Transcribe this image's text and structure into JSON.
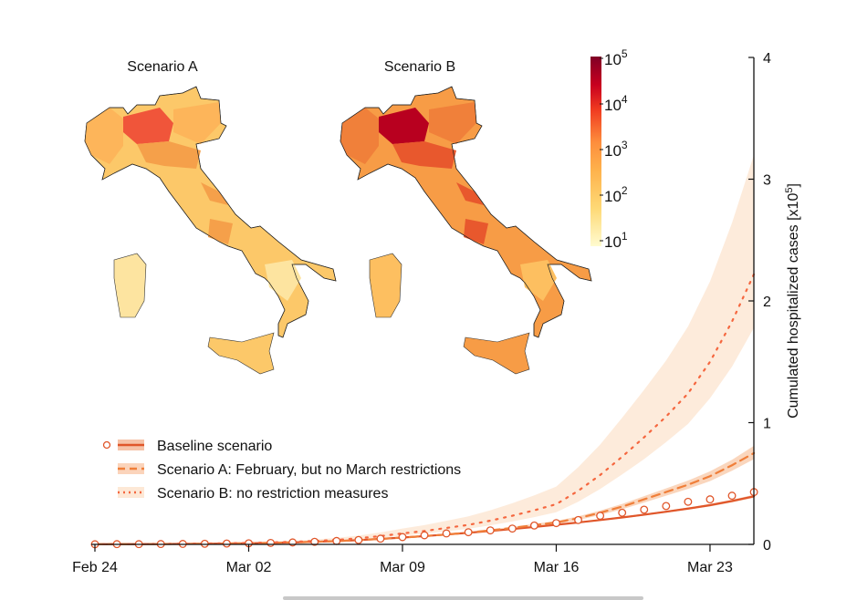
{
  "chart_data": {
    "type": "line",
    "title": "",
    "xlabel": "",
    "ylabel": "Cumulated hospitalized cases [x10^5]",
    "ylabel_main": "Cumulated hospitalized cases [x10",
    "ylabel_exp": "5",
    "ylabel_end": "]",
    "ylim": [
      0,
      4
    ],
    "yticks": [
      "0",
      "1",
      "2",
      "3",
      "4"
    ],
    "x_start": "Feb 24",
    "x_days": 31,
    "xticks": [
      {
        "day": 0,
        "label": "Feb 24"
      },
      {
        "day": 7,
        "label": "Mar 02"
      },
      {
        "day": 14,
        "label": "Mar 09"
      },
      {
        "day": 21,
        "label": "Mar 16"
      },
      {
        "day": 28,
        "label": "Mar 23"
      }
    ],
    "legend_position": "bottom-left",
    "series": [
      {
        "name": "Baseline scenario",
        "style": "solid",
        "color": "#e0562a",
        "values": [
          0.001,
          0.002,
          0.002,
          0.003,
          0.004,
          0.005,
          0.007,
          0.009,
          0.012,
          0.016,
          0.021,
          0.027,
          0.035,
          0.045,
          0.056,
          0.068,
          0.081,
          0.095,
          0.11,
          0.126,
          0.143,
          0.161,
          0.18,
          0.2,
          0.221,
          0.244,
          0.268,
          0.294,
          0.322,
          0.356,
          0.395
        ],
        "band_low": [
          0.001,
          0.002,
          0.002,
          0.003,
          0.004,
          0.005,
          0.007,
          0.009,
          0.012,
          0.015,
          0.02,
          0.026,
          0.034,
          0.043,
          0.054,
          0.066,
          0.078,
          0.092,
          0.106,
          0.122,
          0.138,
          0.156,
          0.174,
          0.194,
          0.214,
          0.236,
          0.26,
          0.285,
          0.312,
          0.345,
          0.383
        ],
        "band_high": [
          0.001,
          0.002,
          0.002,
          0.003,
          0.004,
          0.005,
          0.007,
          0.009,
          0.012,
          0.017,
          0.022,
          0.028,
          0.036,
          0.047,
          0.058,
          0.07,
          0.084,
          0.098,
          0.114,
          0.13,
          0.148,
          0.166,
          0.186,
          0.206,
          0.228,
          0.252,
          0.276,
          0.303,
          0.332,
          0.367,
          0.407
        ],
        "observed": [
          0.001,
          0.002,
          0.002,
          0.003,
          0.004,
          0.005,
          0.007,
          0.009,
          0.012,
          0.016,
          0.021,
          0.028,
          0.036,
          0.047,
          0.06,
          0.075,
          0.09,
          0.1,
          0.115,
          0.13,
          0.155,
          0.175,
          0.2,
          0.235,
          0.26,
          0.285,
          0.315,
          0.35,
          0.37,
          0.4,
          0.43
        ]
      },
      {
        "name": "Scenario A: February, but no March restrictions",
        "style": "dashed",
        "color": "#f07f3a",
        "values": [
          0.001,
          0.002,
          0.002,
          0.003,
          0.004,
          0.005,
          0.007,
          0.009,
          0.012,
          0.016,
          0.021,
          0.027,
          0.035,
          0.045,
          0.056,
          0.068,
          0.081,
          0.097,
          0.115,
          0.135,
          0.158,
          0.18,
          0.215,
          0.26,
          0.31,
          0.37,
          0.43,
          0.49,
          0.56,
          0.65,
          0.75
        ],
        "band_low": [
          0.001,
          0.002,
          0.002,
          0.003,
          0.004,
          0.005,
          0.007,
          0.009,
          0.012,
          0.015,
          0.02,
          0.026,
          0.033,
          0.042,
          0.052,
          0.063,
          0.075,
          0.09,
          0.107,
          0.126,
          0.147,
          0.167,
          0.2,
          0.242,
          0.288,
          0.344,
          0.4,
          0.456,
          0.52,
          0.605,
          0.7
        ],
        "band_high": [
          0.001,
          0.002,
          0.002,
          0.003,
          0.004,
          0.005,
          0.007,
          0.009,
          0.012,
          0.017,
          0.022,
          0.029,
          0.037,
          0.048,
          0.06,
          0.073,
          0.087,
          0.104,
          0.123,
          0.145,
          0.169,
          0.193,
          0.23,
          0.278,
          0.332,
          0.396,
          0.46,
          0.524,
          0.6,
          0.695,
          0.81
        ]
      },
      {
        "name": "Scenario B: no restriction measures",
        "style": "dotted",
        "color": "#f5673f",
        "values": [
          0.001,
          0.002,
          0.003,
          0.004,
          0.005,
          0.007,
          0.009,
          0.012,
          0.016,
          0.021,
          0.028,
          0.037,
          0.05,
          0.068,
          0.09,
          0.11,
          0.135,
          0.16,
          0.195,
          0.235,
          0.28,
          0.33,
          0.44,
          0.57,
          0.72,
          0.88,
          1.05,
          1.24,
          1.5,
          1.83,
          2.22
        ],
        "band_low": [
          0.001,
          0.002,
          0.002,
          0.003,
          0.004,
          0.006,
          0.007,
          0.01,
          0.013,
          0.017,
          0.022,
          0.03,
          0.04,
          0.054,
          0.072,
          0.088,
          0.108,
          0.128,
          0.156,
          0.188,
          0.224,
          0.264,
          0.35,
          0.455,
          0.575,
          0.7,
          0.84,
          0.99,
          1.2,
          1.46,
          1.78
        ],
        "band_high": [
          0.001,
          0.003,
          0.004,
          0.006,
          0.007,
          0.01,
          0.013,
          0.017,
          0.023,
          0.03,
          0.04,
          0.053,
          0.072,
          0.098,
          0.13,
          0.158,
          0.194,
          0.23,
          0.28,
          0.338,
          0.403,
          0.475,
          0.634,
          0.82,
          1.04,
          1.27,
          1.51,
          1.79,
          2.16,
          2.64,
          3.2
        ]
      }
    ]
  },
  "maps": {
    "scenario_a_title": "Scenario A",
    "scenario_b_title": "Scenario B",
    "colorbar": {
      "label_base": "10",
      "ticks": [
        "5",
        "4",
        "3",
        "2",
        "1"
      ],
      "colors": [
        "#fff7bc",
        "#fed976",
        "#feb24c",
        "#fd8d3c",
        "#f03b20",
        "#bd0026",
        "#800026"
      ]
    }
  }
}
